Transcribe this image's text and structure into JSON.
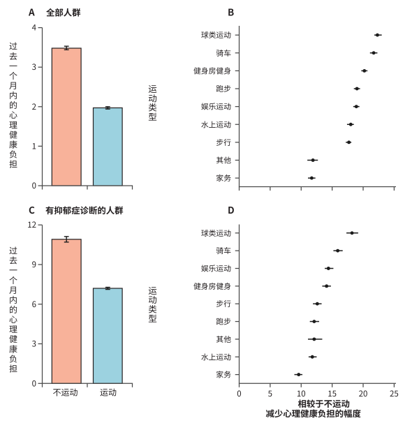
{
  "figure": {
    "background": "#ffffff",
    "ink_color": "#231f20",
    "axis_color": "#4a4a4a",
    "bar_color_no_exercise": "#f8b29a",
    "bar_color_exercise": "#9cd2e0",
    "marker_color": "#1c1c1c"
  },
  "chart_data": [
    {
      "id": "A",
      "type": "bar",
      "panel_letter": "A",
      "title": "全部人群",
      "ylabel": "过去一个月内的心理健康负担",
      "categories": [
        "不运动",
        "运动"
      ],
      "values": [
        3.48,
        1.97
      ],
      "error_bars": [
        [
          3.44,
          3.53
        ],
        [
          1.94,
          2.0
        ]
      ],
      "bar_colors": [
        "#f8b29a",
        "#9cd2e0"
      ],
      "ylim": [
        0,
        4
      ],
      "yticks": [
        0,
        1,
        2,
        3,
        4
      ],
      "x_tick_labels_visible": false,
      "grid": false
    },
    {
      "id": "B",
      "type": "scatter",
      "panel_letter": "B",
      "side_label": "运动类型",
      "categories": [
        "球类运动",
        "骑车",
        "健身房健身",
        "跑步",
        "娱乐运动",
        "水上运动",
        "步行",
        "其他",
        "家务"
      ],
      "values": [
        22.3,
        21.7,
        20.2,
        19.0,
        18.9,
        18.0,
        17.7,
        11.9,
        11.7
      ],
      "error_bars": [
        [
          21.8,
          23.0
        ],
        [
          21.1,
          22.3
        ],
        [
          19.7,
          20.7
        ],
        [
          18.5,
          19.5
        ],
        [
          18.4,
          19.4
        ],
        [
          17.4,
          18.5
        ],
        [
          17.2,
          18.1
        ],
        [
          11.0,
          12.7
        ],
        [
          11.1,
          12.3
        ]
      ],
      "xlim": [
        0,
        25
      ],
      "xticks": [
        0,
        5,
        10,
        15,
        20,
        25
      ],
      "x_tick_labels_visible": false,
      "xlabel_lines": [],
      "grid": false
    },
    {
      "id": "C",
      "type": "bar",
      "panel_letter": "C",
      "title": "有抑郁症诊断的人群",
      "ylabel": "过去一个月内的心理健康负担",
      "categories": [
        "不运动",
        "运动"
      ],
      "values": [
        10.91,
        7.2
      ],
      "error_bars": [
        [
          10.7,
          11.12
        ],
        [
          7.12,
          7.28
        ]
      ],
      "bar_colors": [
        "#f8b29a",
        "#9cd2e0"
      ],
      "ylim": [
        0,
        12
      ],
      "yticks": [
        0,
        3,
        6,
        9,
        12
      ],
      "x_tick_labels_visible": true,
      "grid": false
    },
    {
      "id": "D",
      "type": "scatter",
      "panel_letter": "D",
      "side_label": "运动类型",
      "categories": [
        "球类运动",
        "骑车",
        "娱乐运动",
        "健身房健身",
        "步行",
        "跑步",
        "其他",
        "水上运动",
        "家务"
      ],
      "values": [
        18.2,
        15.9,
        14.4,
        14.1,
        12.6,
        12.1,
        12.1,
        11.8,
        9.6
      ],
      "error_bars": [
        [
          17.3,
          19.2
        ],
        [
          15.2,
          16.7
        ],
        [
          13.8,
          15.2
        ],
        [
          13.4,
          14.8
        ],
        [
          11.9,
          13.3
        ],
        [
          11.4,
          12.9
        ],
        [
          11.1,
          13.4
        ],
        [
          11.2,
          12.5
        ],
        [
          8.9,
          10.2
        ]
      ],
      "xlim": [
        0,
        25
      ],
      "xticks": [
        0,
        5,
        10,
        15,
        20,
        25
      ],
      "x_tick_labels_visible": true,
      "xlabel_lines": [
        "相较于不运动",
        "减少心理健康负担的幅度"
      ],
      "grid": false
    }
  ]
}
